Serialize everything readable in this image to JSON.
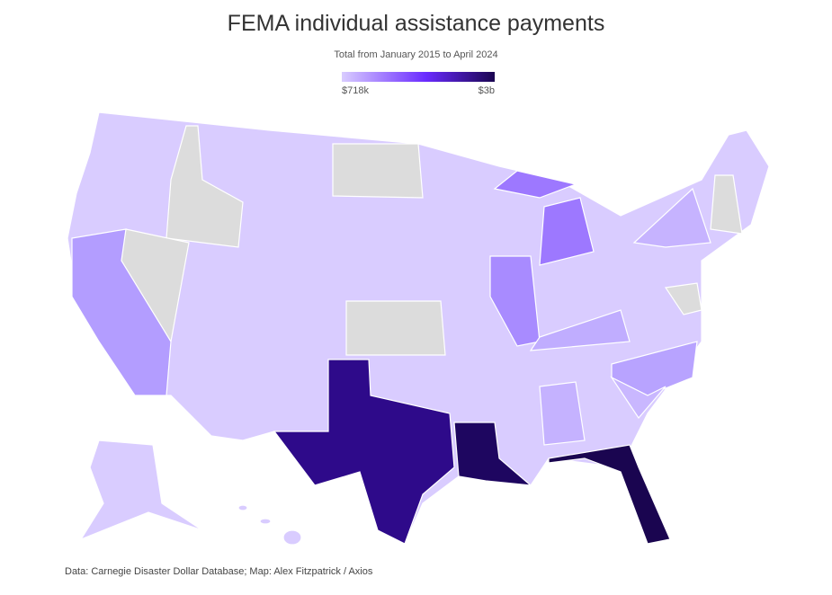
{
  "title": "FEMA individual assistance payments",
  "subtitle": "Total from January 2015 to April 2024",
  "legend": {
    "min_label": "$718k",
    "max_label": "$3b"
  },
  "source": "Data: Carnegie Disaster Dollar Database; Map: Alex Fitzpatrick / Axios"
}
